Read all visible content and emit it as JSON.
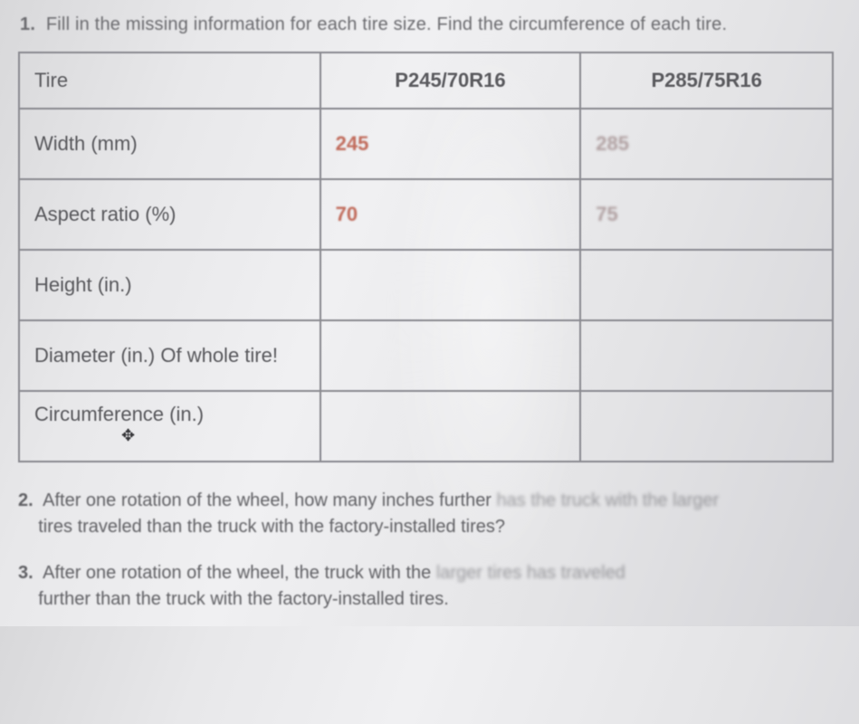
{
  "question1": {
    "number": "1.",
    "text": "Fill in the missing information for each tire size. Find the circumference of each tire."
  },
  "table": {
    "header": {
      "corner": "Tire",
      "col1": "P245/70R16",
      "col2": "P285/75R16"
    },
    "rows": [
      {
        "label": "Width (mm)",
        "c1": "245",
        "c2": "285",
        "c1_class": "red",
        "c2_class": "faded"
      },
      {
        "label": "Aspect ratio (%)",
        "c1": "70",
        "c2": "75",
        "c1_class": "red",
        "c2_class": "faded"
      },
      {
        "label": "Height (in.)",
        "c1": "",
        "c2": "",
        "c1_class": "",
        "c2_class": ""
      },
      {
        "label": "Diameter (in.) Of whole tire!",
        "c1": "",
        "c2": "",
        "c1_class": "",
        "c2_class": ""
      },
      {
        "label": "Circumference (in.)",
        "c1": "",
        "c2": "",
        "c1_class": "",
        "c2_class": ""
      }
    ]
  },
  "question2": {
    "number": "2.",
    "line1_a": "After one rotation of the wheel, how many inches further ",
    "line1_b": "has the truck with the larger",
    "line2": "tires traveled than the truck with the factory-installed tires?"
  },
  "question3": {
    "number": "3.",
    "line1_a": "After one rotation of the wheel, the truck with the ",
    "line1_b": "larger tires has traveled",
    "line2": "further than the truck with the factory-installed tires."
  },
  "style": {
    "border_color": "#8a8a90",
    "text_color": "#5a5a5e",
    "red_color": "#c06a5a",
    "background": "#e8e8ea"
  }
}
